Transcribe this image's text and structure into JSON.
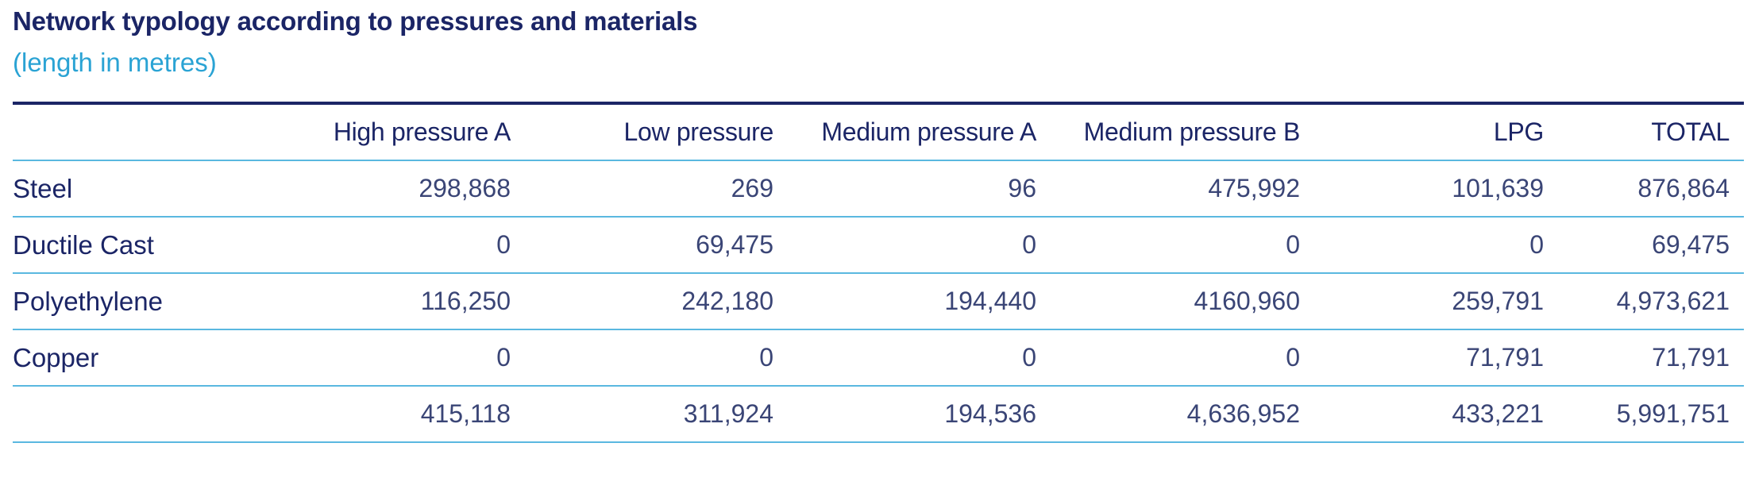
{
  "title": "Network typology according to pressures and materials",
  "subtitle": "(length in metres)",
  "table": {
    "headers": [
      "",
      "High pressure A",
      "Low pressure",
      "Medium pressure A",
      "Medium pressure B",
      "LPG",
      "TOTAL"
    ],
    "rows": [
      {
        "label": "Steel",
        "values": [
          "298,868",
          "269",
          "96",
          "475,992",
          "101,639",
          "876,864"
        ]
      },
      {
        "label": "Ductile Cast",
        "values": [
          "0",
          "69,475",
          "0",
          "0",
          "0",
          "69,475"
        ]
      },
      {
        "label": "Polyethylene",
        "values": [
          "116,250",
          "242,180",
          "194,440",
          "4160,960",
          "259,791",
          "4,973,621"
        ]
      },
      {
        "label": "Copper",
        "values": [
          "0",
          "0",
          "0",
          "0",
          "71,791",
          "71,791"
        ]
      },
      {
        "label": "",
        "values": [
          "415,118",
          "311,924",
          "194,536",
          "4,636,952",
          "433,221",
          "5,991,751"
        ]
      }
    ]
  },
  "colors": {
    "title": "#1b2566",
    "subtitle": "#2aa3d4",
    "rule": "#5ab8e0"
  }
}
